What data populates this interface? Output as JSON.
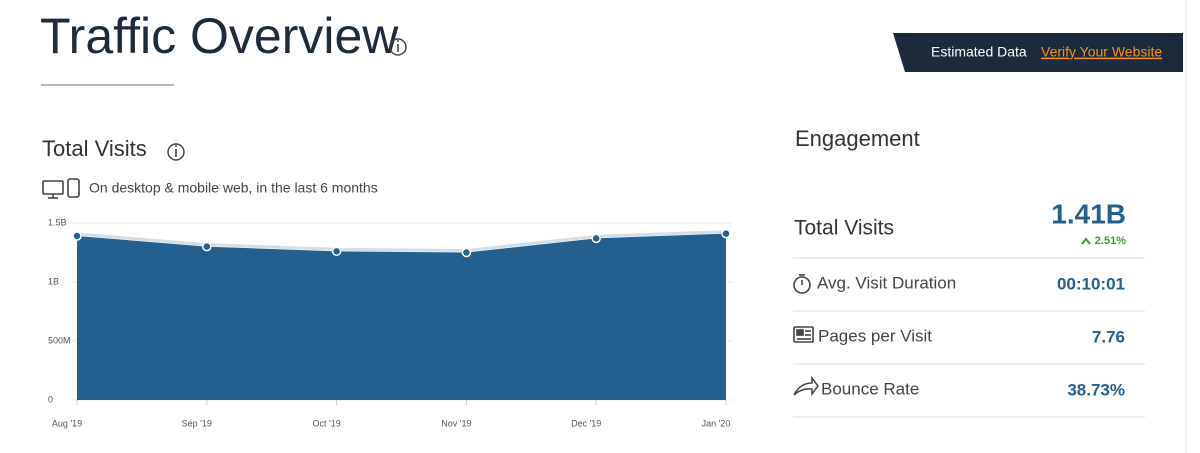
{
  "header": {
    "title": "Traffic Overview",
    "banner_text": "Estimated Data",
    "banner_link": "Verify Your Website"
  },
  "chart_data": {
    "type": "area",
    "title": "Total Visits",
    "subtitle": "On desktop & mobile web, in the last 6 months",
    "categories": [
      "Aug '19",
      "Sep '19",
      "Oct '19",
      "Nov '19",
      "Dec '19",
      "Jan '20"
    ],
    "values": [
      1390000000,
      1300000000,
      1260000000,
      1250000000,
      1370000000,
      1410000000
    ],
    "color": "#24608f",
    "ylim": [
      0,
      1500000000
    ],
    "yticks": [
      0,
      {
        "value": 500000000,
        "label": "500M"
      },
      {
        "value": 1000000000,
        "label": "1B"
      },
      {
        "value": 1500000000,
        "label": "1.5B"
      }
    ],
    "grid": true
  },
  "engagement": {
    "title": "Engagement",
    "metrics": [
      {
        "label": "Total Visits",
        "value": "1.41B",
        "change": "2.51%"
      },
      {
        "label": "Avg. Visit Duration",
        "value": "00:10:01"
      },
      {
        "label": "Pages per Visit",
        "value": "7.76"
      },
      {
        "label": "Bounce Rate",
        "value": "38.73%"
      }
    ]
  }
}
